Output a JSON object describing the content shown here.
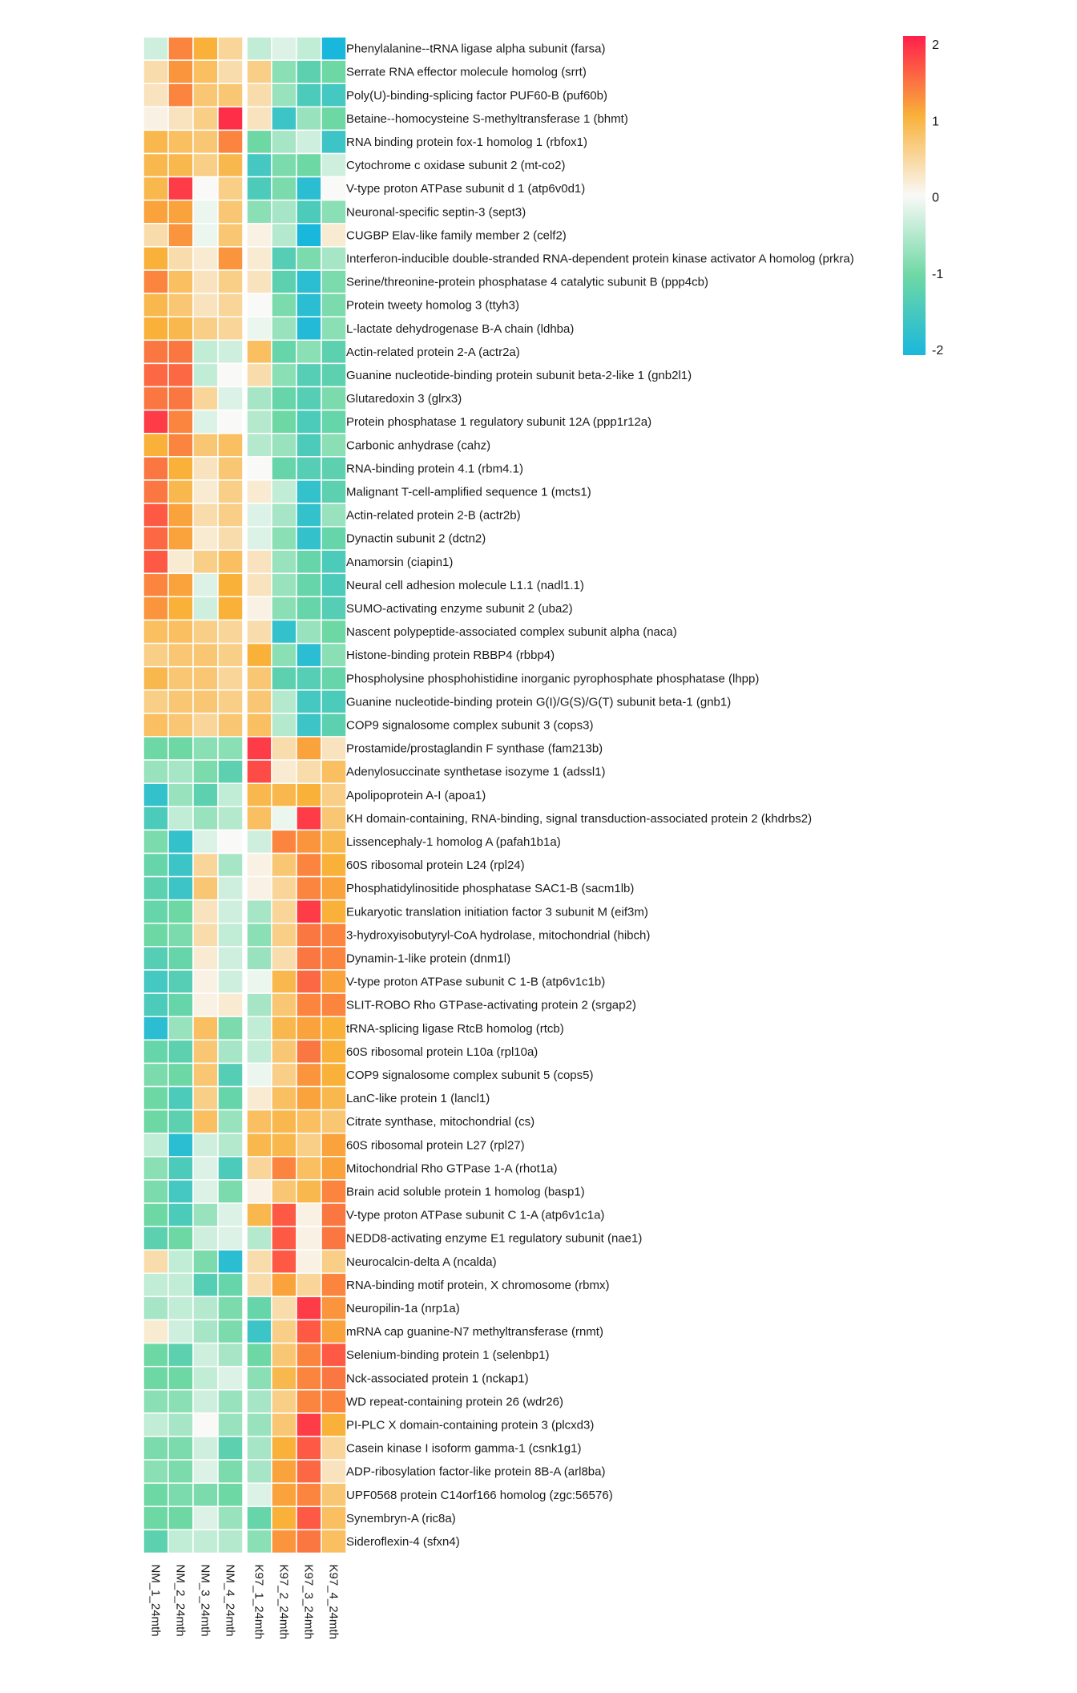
{
  "chart_data": {
    "type": "heatmap",
    "title": "",
    "columns": [
      "NM_1_24mth",
      "NM_2_24mth",
      "NM_3_24mth",
      "NM_4_24mth",
      "K97_1_24mth",
      "K97_2_24mth",
      "K97_3_24mth",
      "K97_4_24mth"
    ],
    "column_groups": [
      [
        "NM_1_24mth",
        "NM_2_24mth",
        "NM_3_24mth",
        "NM_4_24mth"
      ],
      [
        "K97_1_24mth",
        "K97_2_24mth",
        "K97_3_24mth",
        "K97_4_24mth"
      ]
    ],
    "rows": [
      "Phenylalanine--tRNA ligase alpha subunit (farsa)",
      "Serrate RNA effector molecule homolog (srrt)",
      "Poly(U)-binding-splicing factor PUF60-B (puf60b)",
      "Betaine--homocysteine S-methyltransferase 1 (bhmt)",
      "RNA binding protein fox-1 homolog 1 (rbfox1)",
      "Cytochrome c oxidase subunit 2 (mt-co2)",
      "V-type proton ATPase subunit d 1 (atp6v0d1)",
      "Neuronal-specific septin-3 (sept3)",
      "CUGBP Elav-like family member 2 (celf2)",
      "Interferon-inducible double-stranded RNA-dependent protein kinase activator A homolog (prkra)",
      "Serine/threonine-protein phosphatase 4 catalytic subunit B (ppp4cb)",
      "Protein tweety homolog 3 (ttyh3)",
      "L-lactate dehydrogenase B-A chain (ldhba)",
      "Actin-related protein 2-A (actr2a)",
      "Guanine nucleotide-binding protein subunit beta-2-like 1 (gnb2l1)",
      "Glutaredoxin 3 (glrx3)",
      "Protein phosphatase 1 regulatory subunit 12A (ppp1r12a)",
      "Carbonic anhydrase (cahz)",
      "RNA-binding protein 4.1 (rbm4.1)",
      "Malignant T-cell-amplified sequence 1 (mcts1)",
      "Actin-related protein 2-B (actr2b)",
      "Dynactin subunit 2 (dctn2)",
      "Anamorsin (ciapin1)",
      "Neural cell adhesion molecule L1.1 (nadl1.1)",
      "SUMO-activating enzyme subunit 2 (uba2)",
      "Nascent polypeptide-associated complex subunit alpha (naca)",
      "Histone-binding protein RBBP4 (rbbp4)",
      "Phospholysine phosphohistidine inorganic pyrophosphate phosphatase (lhpp)",
      "Guanine nucleotide-binding protein G(I)/G(S)/G(T) subunit beta-1 (gnb1)",
      "COP9 signalosome complex subunit 3 (cops3)",
      "Prostamide/prostaglandin F synthase (fam213b)",
      "Adenylosuccinate synthetase isozyme 1 (adssl1)",
      "Apolipoprotein A-I (apoa1)",
      "KH domain-containing, RNA-binding, signal transduction-associated protein 2 (khdrbs2)",
      "Lissencephaly-1 homolog A (pafah1b1a)",
      "60S ribosomal protein L24 (rpl24)",
      "Phosphatidylinositide phosphatase SAC1-B (sacm1lb)",
      "Eukaryotic translation initiation factor 3 subunit M (eif3m)",
      "3-hydroxyisobutyryl-CoA hydrolase, mitochondrial (hibch)",
      "Dynamin-1-like protein (dnm1l)",
      "V-type proton ATPase subunit C 1-B (atp6v1c1b)",
      "SLIT-ROBO Rho GTPase-activating protein 2 (srgap2)",
      "tRNA-splicing ligase RtcB homolog (rtcb)",
      "60S ribosomal protein L10a (rpl10a)",
      "COP9 signalosome complex subunit 5 (cops5)",
      "LanC-like protein 1 (lancl1)",
      "Citrate synthase, mitochondrial (cs)",
      "60S ribosomal protein L27 (rpl27)",
      "Mitochondrial Rho GTPase 1-A (rhot1a)",
      "Brain acid soluble protein 1 homolog (basp1)",
      "V-type proton ATPase subunit C 1-A (atp6v1c1a)",
      "NEDD8-activating enzyme E1 regulatory subunit (nae1)",
      "Neurocalcin-delta A (ncalda)",
      "RNA-binding motif protein, X chromosome (rbmx)",
      "Neuropilin-1a (nrp1a)",
      "mRNA cap guanine-N7 methyltransferase (rnmt)",
      "Selenium-binding protein 1 (selenbp1)",
      "Nck-associated protein 1 (nckap1)",
      "WD repeat-containing protein 26 (wdr26)",
      "PI-PLC X domain-containing protein 3 (plcxd3)",
      "Casein kinase I isoform gamma-1 (csnk1g1)",
      "ADP-ribosylation factor-like protein 8B-A (arl8ba)",
      "UPF0568 protein C14orf166 homolog (zgc:56576)",
      "Synembryn-A (ric8a)",
      "Sideroflexin-4 (sfxn4)"
    ],
    "values": [
      [
        -0.3,
        1.3,
        1.0,
        0.5,
        -0.4,
        -0.2,
        -0.4,
        -2.0
      ],
      [
        0.4,
        1.2,
        0.8,
        0.4,
        0.6,
        -0.8,
        -1.2,
        -1.0
      ],
      [
        0.3,
        1.3,
        0.7,
        0.7,
        0.4,
        -0.7,
        -1.4,
        -1.5
      ],
      [
        0.1,
        0.3,
        0.6,
        1.9,
        0.3,
        -1.6,
        -0.7,
        -1.0
      ],
      [
        0.9,
        0.8,
        0.7,
        1.3,
        -1.0,
        -0.6,
        -0.3,
        -1.6
      ],
      [
        0.9,
        0.9,
        0.6,
        0.9,
        -1.5,
        -0.9,
        -1.0,
        -0.3
      ],
      [
        0.9,
        1.8,
        0.0,
        0.6,
        -1.4,
        -0.9,
        -1.8,
        0.0
      ],
      [
        1.1,
        1.1,
        -0.1,
        0.7,
        -0.8,
        -0.6,
        -1.4,
        -0.8
      ],
      [
        0.4,
        1.2,
        -0.1,
        0.7,
        0.1,
        -0.5,
        -2.0,
        0.2
      ],
      [
        1.0,
        0.4,
        0.2,
        1.2,
        0.2,
        -1.3,
        -0.9,
        -0.6
      ],
      [
        1.3,
        0.8,
        0.3,
        0.6,
        0.3,
        -1.2,
        -1.8,
        -0.9
      ],
      [
        0.9,
        0.7,
        0.3,
        0.5,
        0.0,
        -0.9,
        -1.8,
        -0.9
      ],
      [
        1.0,
        0.9,
        0.6,
        0.5,
        -0.1,
        -0.7,
        -1.9,
        -0.8
      ],
      [
        1.4,
        1.4,
        -0.4,
        -0.3,
        0.8,
        -1.1,
        -0.8,
        -1.2
      ],
      [
        1.5,
        1.5,
        -0.4,
        0.0,
        0.4,
        -0.8,
        -1.3,
        -1.2
      ],
      [
        1.4,
        1.4,
        0.5,
        -0.2,
        -0.6,
        -1.1,
        -1.3,
        -0.9
      ],
      [
        1.8,
        1.3,
        -0.2,
        0.0,
        -0.5,
        -1.0,
        -1.4,
        -1.1
      ],
      [
        1.0,
        1.3,
        0.7,
        0.8,
        -0.5,
        -0.7,
        -1.4,
        -0.8
      ],
      [
        1.4,
        1.0,
        0.3,
        0.7,
        0.0,
        -1.1,
        -1.3,
        -1.2
      ],
      [
        1.4,
        0.9,
        0.2,
        0.6,
        0.2,
        -0.4,
        -1.7,
        -1.2
      ],
      [
        1.6,
        1.1,
        0.4,
        0.6,
        -0.2,
        -0.6,
        -1.7,
        -0.7
      ],
      [
        1.5,
        1.1,
        0.2,
        0.4,
        -0.2,
        -0.8,
        -1.7,
        -1.1
      ],
      [
        1.6,
        0.2,
        0.6,
        0.8,
        0.3,
        -0.7,
        -1.1,
        -1.4
      ],
      [
        1.3,
        1.1,
        -0.2,
        1.0,
        0.3,
        -0.7,
        -1.1,
        -1.4
      ],
      [
        1.2,
        1.0,
        -0.3,
        1.0,
        0.1,
        -0.8,
        -1.1,
        -1.3
      ],
      [
        0.8,
        0.8,
        0.6,
        0.5,
        0.4,
        -1.7,
        -0.7,
        -1.0
      ],
      [
        0.6,
        0.7,
        0.7,
        0.6,
        1.0,
        -0.8,
        -1.8,
        -0.8
      ],
      [
        0.9,
        0.7,
        0.7,
        0.5,
        0.7,
        -1.2,
        -1.3,
        -1.1
      ],
      [
        0.6,
        0.7,
        0.7,
        0.6,
        0.7,
        -0.5,
        -1.5,
        -1.4
      ],
      [
        0.8,
        0.7,
        0.5,
        0.7,
        0.8,
        -0.5,
        -1.6,
        -1.2
      ],
      [
        -1.0,
        -1.0,
        -0.8,
        -0.8,
        1.8,
        0.4,
        1.1,
        0.3
      ],
      [
        -0.7,
        -0.6,
        -0.9,
        -1.2,
        1.7,
        0.2,
        0.4,
        0.8
      ],
      [
        -1.7,
        -0.7,
        -1.2,
        -0.4,
        0.9,
        0.9,
        1.0,
        0.6
      ],
      [
        -1.4,
        -0.4,
        -0.7,
        -0.5,
        0.8,
        -0.1,
        1.8,
        0.7
      ],
      [
        -0.9,
        -1.7,
        -0.2,
        0.0,
        -0.3,
        1.3,
        1.2,
        0.9
      ],
      [
        -1.1,
        -1.6,
        0.5,
        -0.6,
        0.1,
        0.7,
        1.3,
        1.0
      ],
      [
        -1.2,
        -1.6,
        0.7,
        -0.3,
        0.1,
        0.5,
        1.3,
        1.1
      ],
      [
        -1.1,
        -1.0,
        0.3,
        -0.3,
        -0.6,
        0.5,
        1.8,
        1.0
      ],
      [
        -1.0,
        -0.9,
        0.4,
        -0.4,
        -0.8,
        0.6,
        1.4,
        1.3
      ],
      [
        -1.3,
        -1.1,
        0.2,
        -0.3,
        -0.7,
        0.4,
        1.4,
        1.3
      ],
      [
        -1.5,
        -1.3,
        0.1,
        -0.3,
        -0.1,
        0.9,
        1.5,
        1.1
      ],
      [
        -1.4,
        -1.1,
        0.1,
        0.2,
        -0.6,
        0.7,
        1.3,
        1.3
      ],
      [
        -1.8,
        -0.7,
        0.8,
        -0.9,
        -0.4,
        0.9,
        1.1,
        1.0
      ],
      [
        -1.1,
        -1.2,
        0.7,
        -0.6,
        -0.4,
        0.7,
        1.4,
        1.0
      ],
      [
        -0.9,
        -1.0,
        0.7,
        -1.3,
        -0.1,
        0.6,
        1.2,
        1.0
      ],
      [
        -1.0,
        -1.4,
        0.6,
        -1.1,
        0.2,
        0.8,
        1.1,
        0.9
      ],
      [
        -1.0,
        -1.2,
        0.8,
        -0.7,
        0.8,
        0.9,
        0.8,
        0.7
      ],
      [
        -0.4,
        -1.8,
        -0.3,
        -0.5,
        0.9,
        0.9,
        0.6,
        1.1
      ],
      [
        -0.8,
        -1.4,
        -0.2,
        -1.4,
        0.5,
        1.3,
        0.8,
        1.1
      ],
      [
        -0.9,
        -1.5,
        -0.2,
        -0.9,
        0.1,
        0.7,
        0.9,
        1.3
      ],
      [
        -1.0,
        -1.4,
        -0.7,
        -0.2,
        0.9,
        1.6,
        0.1,
        1.4
      ],
      [
        -1.2,
        -1.0,
        -0.3,
        -0.2,
        -0.5,
        1.6,
        0.1,
        1.4
      ],
      [
        0.4,
        -0.4,
        -0.9,
        -1.8,
        0.4,
        1.6,
        0.1,
        0.6
      ],
      [
        -0.4,
        -0.4,
        -1.3,
        -1.1,
        0.4,
        1.1,
        0.5,
        1.3
      ],
      [
        -0.6,
        -0.4,
        -0.5,
        -0.9,
        -1.1,
        0.4,
        1.8,
        1.2
      ],
      [
        0.2,
        -0.3,
        -0.6,
        -0.9,
        -1.6,
        0.6,
        1.6,
        1.1
      ],
      [
        -1.0,
        -1.2,
        -0.3,
        -0.6,
        -1.0,
        0.7,
        1.3,
        1.6
      ],
      [
        -1.0,
        -1.0,
        -0.4,
        -0.2,
        -0.8,
        0.9,
        1.3,
        1.4
      ],
      [
        -0.8,
        -0.8,
        -0.3,
        -0.7,
        -0.6,
        0.6,
        1.3,
        1.3
      ],
      [
        -0.4,
        -0.6,
        0.0,
        -0.7,
        -0.7,
        0.7,
        1.8,
        1.0
      ],
      [
        -0.9,
        -0.9,
        -0.3,
        -1.2,
        -0.6,
        1.0,
        1.6,
        0.5
      ],
      [
        -0.8,
        -0.9,
        -0.2,
        -0.9,
        -0.6,
        1.1,
        1.5,
        0.3
      ],
      [
        -1.0,
        -0.9,
        -0.9,
        -1.0,
        -0.2,
        1.1,
        1.3,
        0.7
      ],
      [
        -1.0,
        -1.0,
        -0.2,
        -0.7,
        -1.1,
        1.0,
        1.6,
        0.8
      ],
      [
        -1.2,
        -0.4,
        -0.4,
        -0.5,
        -0.8,
        1.2,
        1.4,
        0.8
      ]
    ],
    "color_scale": {
      "ticks": [
        2,
        1,
        0,
        -1,
        -2
      ],
      "stops": [
        {
          "value": -2,
          "color": "#1ab7dd"
        },
        {
          "value": -1,
          "color": "#6ed8a4"
        },
        {
          "value": 0,
          "color": "#f9f9f7"
        },
        {
          "value": 1,
          "color": "#f9b13a"
        },
        {
          "value": 2,
          "color": "#ff1f4b"
        }
      ]
    },
    "legend_position": "top-right"
  }
}
